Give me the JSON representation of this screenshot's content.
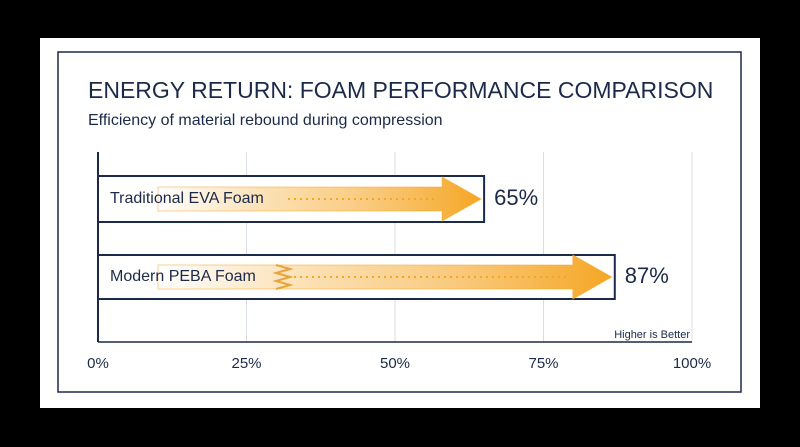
{
  "chart_data": {
    "type": "bar",
    "orientation": "horizontal",
    "title": "ENERGY RETURN: FOAM PERFORMANCE COMPARISON",
    "subtitle": "Efficiency of material rebound during compression",
    "categories": [
      "Traditional EVA Foam",
      "Modern PEBA Foam"
    ],
    "values": [
      65,
      87
    ],
    "value_labels": [
      "65%",
      "87%"
    ],
    "color": "#f5a623",
    "xlim": [
      0,
      100
    ],
    "xticks": [
      {
        "value": 0,
        "label": "0%"
      },
      {
        "value": 25,
        "label": "25%"
      },
      {
        "value": 50,
        "label": "50%"
      },
      {
        "value": 75,
        "label": "75%"
      },
      {
        "value": 100,
        "label": "100%"
      }
    ],
    "grid": true,
    "annotation": "Higher is Better"
  }
}
